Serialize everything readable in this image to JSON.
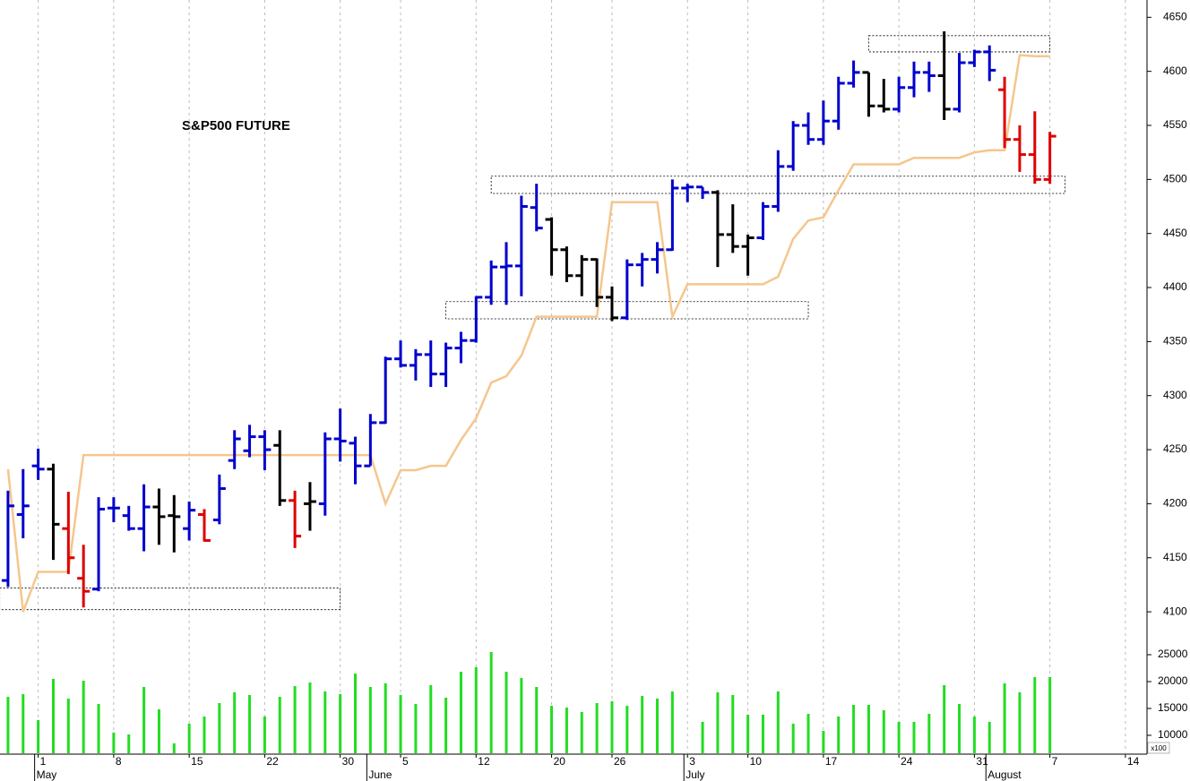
{
  "chart_data": {
    "type": "ohlc",
    "title": "S&P500 FUTURE",
    "xlim": [
      -0.53,
      75.43
    ],
    "xticks": [
      {
        "value": 2,
        "label": "1"
      },
      {
        "value": 7,
        "label": "8"
      },
      {
        "value": 12,
        "label": "15"
      },
      {
        "value": 17,
        "label": "22"
      },
      {
        "value": 22,
        "label": "30"
      },
      {
        "value": 26,
        "label": "5"
      },
      {
        "value": 31,
        "label": "12"
      },
      {
        "value": 36,
        "label": "20"
      },
      {
        "value": 40,
        "label": "26"
      },
      {
        "value": 45,
        "label": "3"
      },
      {
        "value": 49,
        "label": "10"
      },
      {
        "value": 54,
        "label": "17"
      },
      {
        "value": 59,
        "label": "24"
      },
      {
        "value": 64,
        "label": "31"
      },
      {
        "value": 69,
        "label": "7"
      },
      {
        "value": 74,
        "label": "14"
      }
    ],
    "months": [
      {
        "value": 2,
        "label": "May"
      },
      {
        "value": 24,
        "label": "June"
      },
      {
        "value": 45,
        "label": "July"
      },
      {
        "value": 65,
        "label": "August"
      }
    ],
    "ylim": [
      4086,
      4666
    ],
    "yticks": [
      4100,
      4150,
      4200,
      4250,
      4300,
      4350,
      4400,
      4450,
      4500,
      4550,
      4600,
      4650
    ],
    "open": [
      4129,
      4190,
      4235,
      4232,
      4177,
      4131,
      4121,
      4196,
      4189,
      4177,
      4197,
      4189,
      4177,
      4190,
      4185,
      4240,
      4249,
      4262,
      4254,
      4203,
      4200,
      4200,
      4260,
      4256,
      4235,
      4275,
      4334,
      4328,
      4338,
      4320,
      4344,
      4351,
      4391,
      4419,
      4420,
      4474,
      4463,
      4435,
      4411,
      4426,
      4391,
      4372,
      4421,
      4426,
      4435,
      4492,
      4493,
      4488,
      4449,
      4438,
      4446,
      4475,
      4512,
      4550,
      4537,
      4554,
      4589,
      4599,
      4568,
      4565,
      4585,
      4599,
      4596,
      4565,
      4608,
      4618,
      4583,
      4537,
      4523,
      4500
    ],
    "high": [
      4212,
      4232,
      4251,
      4237,
      4211,
      4162,
      4206,
      4206,
      4198,
      4218,
      4214,
      4208,
      4202,
      4195,
      4227,
      4268,
      4273,
      4268,
      4268,
      4212,
      4220,
      4266,
      4288,
      4262,
      4283,
      4336,
      4351,
      4343,
      4351,
      4349,
      4359,
      4392,
      4425,
      4442,
      4485,
      4496,
      4465,
      4438,
      4430,
      4427,
      4401,
      4426,
      4432,
      4442,
      4500,
      4496,
      4493,
      4490,
      4477,
      4449,
      4479,
      4527,
      4554,
      4562,
      4573,
      4595,
      4610,
      4599,
      4593,
      4595,
      4609,
      4609,
      4637,
      4617,
      4620,
      4624,
      4595,
      4550,
      4563,
      4544
    ],
    "low": [
      4123,
      4168,
      4222,
      4148,
      4135,
      4104,
      4119,
      4183,
      4175,
      4156,
      4162,
      4155,
      4166,
      4165,
      4181,
      4232,
      4243,
      4231,
      4198,
      4159,
      4175,
      4189,
      4239,
      4218,
      4235,
      4274,
      4326,
      4314,
      4308,
      4308,
      4330,
      4349,
      4384,
      4384,
      4392,
      4452,
      4411,
      4405,
      4392,
      4382,
      4369,
      4370,
      4401,
      4413,
      4434,
      4479,
      4482,
      4419,
      4432,
      4411,
      4444,
      4470,
      4508,
      4532,
      4532,
      4546,
      4585,
      4558,
      4562,
      4562,
      4576,
      4581,
      4555,
      4562,
      4604,
      4591,
      4529,
      4507,
      4496,
      4496
    ],
    "close": [
      4198,
      4198,
      4232,
      4181,
      4150,
      4119,
      4195,
      4196,
      4177,
      4197,
      4188,
      4188,
      4194,
      4166,
      4214,
      4260,
      4262,
      4250,
      4203,
      4170,
      4202,
      4260,
      4258,
      4235,
      4275,
      4334,
      4328,
      4338,
      4320,
      4344,
      4351,
      4391,
      4419,
      4420,
      4475,
      4455,
      4435,
      4411,
      4426,
      4391,
      4372,
      4421,
      4426,
      4435,
      4492,
      4493,
      4488,
      4449,
      4438,
      4446,
      4475,
      4512,
      4550,
      4537,
      4554,
      4589,
      4599,
      4568,
      4565,
      4585,
      4599,
      4596,
      4565,
      4608,
      4618,
      4601,
      4537,
      4523,
      4500,
      4540
    ],
    "colors": [
      "#0000cc",
      "#0000cc",
      "#0000cc",
      "#000000",
      "#dd0000",
      "#dd0000",
      "#0000cc",
      "#0000cc",
      "#0000cc",
      "#0000cc",
      "#000000",
      "#000000",
      "#0000cc",
      "#dd0000",
      "#0000cc",
      "#0000cc",
      "#0000cc",
      "#0000cc",
      "#000000",
      "#dd0000",
      "#000000",
      "#0000cc",
      "#0000cc",
      "#0000cc",
      "#0000cc",
      "#0000cc",
      "#0000cc",
      "#0000cc",
      "#0000cc",
      "#0000cc",
      "#0000cc",
      "#0000cc",
      "#0000cc",
      "#0000cc",
      "#0000cc",
      "#0000cc",
      "#000000",
      "#000000",
      "#000000",
      "#000000",
      "#000000",
      "#0000cc",
      "#0000cc",
      "#0000cc",
      "#0000cc",
      "#0000cc",
      "#0000cc",
      "#000000",
      "#000000",
      "#000000",
      "#0000cc",
      "#0000cc",
      "#0000cc",
      "#0000cc",
      "#0000cc",
      "#0000cc",
      "#0000cc",
      "#000000",
      "#000000",
      "#0000cc",
      "#0000cc",
      "#0000cc",
      "#000000",
      "#0000cc",
      "#0000cc",
      "#0000cc",
      "#dd0000",
      "#dd0000",
      "#dd0000",
      "#dd0000"
    ],
    "line": {
      "color": "#f5c68c",
      "values": [
        4232,
        4100,
        4137,
        4137,
        4137,
        4245,
        4245,
        4245,
        4245,
        4245,
        4245,
        4245,
        4245,
        4245,
        4245,
        4245,
        4245,
        4245,
        4245,
        4245,
        4245,
        4245,
        4245,
        4245,
        4245,
        4200,
        4231,
        4231,
        4235,
        4235,
        4259,
        4279,
        4312,
        4318,
        4337,
        4373,
        4373,
        4373,
        4373,
        4373,
        4479,
        4479,
        4479,
        4479,
        4373,
        4403,
        4403,
        4403,
        4403,
        4403,
        4403,
        4410,
        4445,
        4462,
        4465,
        4490,
        4514,
        4514,
        4514,
        4514,
        4520,
        4520,
        4520,
        4520,
        4525,
        4527,
        4527,
        4615,
        4614,
        4614
      ]
    },
    "zones": [
      {
        "x": [
          -0.55,
          22
        ],
        "y": [
          4102,
          4122
        ]
      },
      {
        "x": [
          29,
          53
        ],
        "y": [
          4371,
          4387
        ]
      },
      {
        "x": [
          32,
          70
        ],
        "y": [
          4487,
          4503
        ]
      },
      {
        "x": [
          57,
          69
        ],
        "y": [
          4618,
          4633
        ]
      }
    ],
    "volume": {
      "color": "#22dd22",
      "unit_label": "x100",
      "ylim": [
        6667,
        26833
      ],
      "yticks": [
        10000,
        15000,
        20000,
        25000
      ],
      "values": [
        17167,
        17667,
        12833,
        20500,
        16833,
        20167,
        15833,
        10500,
        10167,
        19000,
        14833,
        8500,
        12167,
        13500,
        16000,
        18000,
        17500,
        13500,
        17167,
        19167,
        19833,
        18167,
        17667,
        21500,
        19000,
        19667,
        17500,
        15833,
        19333,
        17000,
        21833,
        22667,
        25500,
        21833,
        20667,
        19000,
        15500,
        15167,
        14333,
        16000,
        16333,
        15500,
        17333,
        16833,
        18167,
        null,
        12500,
        18000,
        17500,
        13833,
        13833,
        18167,
        12167,
        14000,
        10833,
        13500,
        15667,
        15667,
        14667,
        12500,
        12500,
        14000,
        19333,
        15833,
        13500,
        12500,
        19667,
        18000,
        20833,
        20833
      ]
    }
  }
}
